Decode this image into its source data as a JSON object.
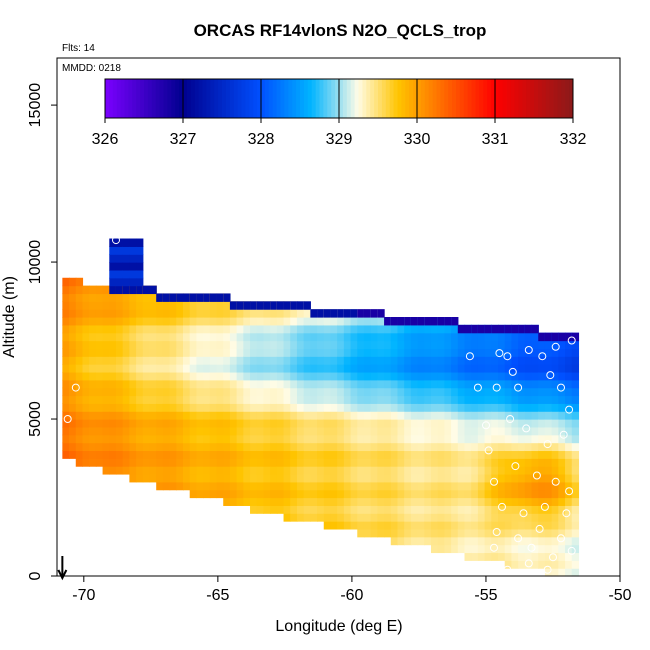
{
  "chart_data": {
    "type": "heatmap",
    "title": "ORCAS RF14vlonS N2O_QCLS_trop",
    "subtitle_flights": "Flts: 14",
    "subtitle_date": "MMDD: 0218",
    "xlabel": "Longitude (deg E)",
    "ylabel": "Altitude (m)",
    "xlim": [
      -71,
      -50
    ],
    "ylim": [
      0,
      16500
    ],
    "x_ticks": [
      -70,
      -65,
      -60,
      -55,
      -50
    ],
    "y_ticks": [
      0,
      5000,
      10000,
      15000
    ],
    "x_tick_labels": [
      "-70",
      "-65",
      "-60",
      "-55",
      "-50"
    ],
    "y_tick_labels": [
      "0",
      "5000",
      "10000",
      "15000"
    ],
    "colorbar": {
      "min": 326,
      "max": 332,
      "ticks": [
        326,
        327,
        328,
        329,
        330,
        331,
        332
      ],
      "tick_labels": [
        "326",
        "327",
        "328",
        "329",
        "330",
        "331",
        "332"
      ],
      "colors": [
        "#7b00ff",
        "#00008f",
        "#0050ff",
        "#00b4ff",
        "#fffce6",
        "#ffc400",
        "#ff8c00",
        "#ff0000",
        "#8b1a1a"
      ]
    },
    "cell_longitude_step": 0.25,
    "cell_altitude_step": 250,
    "grid_extent": {
      "lon_min": -70.8,
      "lon_max": -51.6,
      "top_west_alt": 9300,
      "top_east_alt": 7600,
      "bottom_west_alt": 3900,
      "bottom_east_alt": 0
    },
    "field_description_values": {
      "west_near_lon": -70.5,
      "west_value": 330.3,
      "center_low_value": 329.2,
      "east_mid_value": 328.0,
      "top_band_value": 327.2
    },
    "flight_marker_longitude": -70.8,
    "observation_points": [
      {
        "lon": -70.3,
        "alt": 6000
      },
      {
        "lon": -70.6,
        "alt": 5000
      },
      {
        "lon": -69.3,
        "alt": 9400
      },
      {
        "lon": -68.8,
        "alt": 10700
      },
      {
        "lon": -55.6,
        "alt": 7000
      },
      {
        "lon": -55.3,
        "alt": 6000
      },
      {
        "lon": -54.5,
        "alt": 7100
      },
      {
        "lon": -54.2,
        "alt": 7000
      },
      {
        "lon": -54.0,
        "alt": 6500
      },
      {
        "lon": -53.8,
        "alt": 6000
      },
      {
        "lon": -53.4,
        "alt": 7200
      },
      {
        "lon": -52.9,
        "alt": 7000
      },
      {
        "lon": -52.6,
        "alt": 6400
      },
      {
        "lon": -52.4,
        "alt": 7300
      },
      {
        "lon": -52.2,
        "alt": 6000
      },
      {
        "lon": -51.8,
        "alt": 7500
      },
      {
        "lon": -51.9,
        "alt": 5300
      },
      {
        "lon": -54.6,
        "alt": 6000
      },
      {
        "lon": -55.0,
        "alt": 4800
      },
      {
        "lon": -54.1,
        "alt": 5000
      },
      {
        "lon": -53.5,
        "alt": 4700
      },
      {
        "lon": -52.7,
        "alt": 4200
      },
      {
        "lon": -52.1,
        "alt": 4500
      },
      {
        "lon": -54.9,
        "alt": 4000
      },
      {
        "lon": -54.7,
        "alt": 3000
      },
      {
        "lon": -53.9,
        "alt": 3500
      },
      {
        "lon": -53.1,
        "alt": 3200
      },
      {
        "lon": -52.4,
        "alt": 3000
      },
      {
        "lon": -51.9,
        "alt": 2700
      },
      {
        "lon": -54.4,
        "alt": 2200
      },
      {
        "lon": -53.6,
        "alt": 2000
      },
      {
        "lon": -52.8,
        "alt": 2200
      },
      {
        "lon": -52.0,
        "alt": 2000
      },
      {
        "lon": -54.6,
        "alt": 1400
      },
      {
        "lon": -53.8,
        "alt": 1200
      },
      {
        "lon": -53.0,
        "alt": 1500
      },
      {
        "lon": -52.2,
        "alt": 1200
      },
      {
        "lon": -54.7,
        "alt": 900
      },
      {
        "lon": -53.3,
        "alt": 900
      },
      {
        "lon": -52.5,
        "alt": 600
      },
      {
        "lon": -51.8,
        "alt": 800
      },
      {
        "lon": -55.0,
        "alt": 300
      },
      {
        "lon": -54.2,
        "alt": 200
      },
      {
        "lon": -53.4,
        "alt": 400
      },
      {
        "lon": -52.7,
        "alt": 200
      }
    ]
  }
}
